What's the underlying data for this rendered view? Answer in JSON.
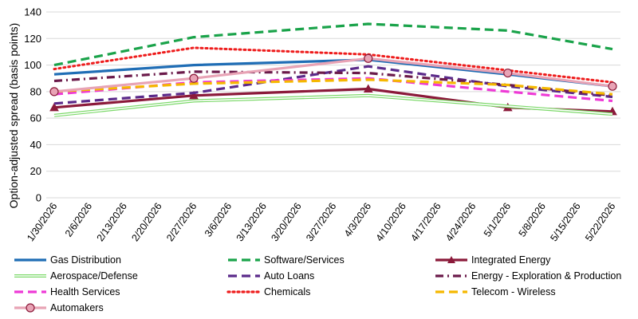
{
  "chart_data": {
    "type": "line",
    "title": "",
    "xlabel": "",
    "ylabel": "Option-adjusted spread (basis points)",
    "ylim": [
      0,
      140
    ],
    "yticks": [
      0,
      20,
      40,
      60,
      80,
      100,
      120,
      140
    ],
    "grid": true,
    "legend_position": "bottom",
    "x": [
      "1/30/2026",
      "2/6/2026",
      "2/13/2026",
      "2/20/2026",
      "2/27/2026",
      "3/6/2026",
      "3/13/2026",
      "3/20/2026",
      "3/27/2026",
      "4/3/2026",
      "4/10/2026",
      "4/17/2026",
      "4/24/2026",
      "5/1/2026",
      "5/8/2026",
      "5/15/2026",
      "5/22/2026"
    ],
    "series": [
      {
        "name": "Gas Distribution",
        "color": "#1f6db5",
        "dash": "solid",
        "marker": "none",
        "points": [
          [
            "1/30/2026",
            93
          ],
          [
            "2/27/2026",
            100
          ],
          [
            "4/3/2026",
            104
          ],
          [
            "5/1/2026",
            93
          ],
          [
            "5/22/2026",
            84
          ]
        ]
      },
      {
        "name": "Software/Services",
        "color": "#1aa34a",
        "dash": "longdash",
        "marker": "none",
        "points": [
          [
            "1/30/2026",
            100
          ],
          [
            "2/27/2026",
            121
          ],
          [
            "4/3/2026",
            131
          ],
          [
            "5/1/2026",
            126
          ],
          [
            "5/22/2026",
            112
          ]
        ]
      },
      {
        "name": "Integrated Energy",
        "color": "#8b1a3a",
        "dash": "solid",
        "marker": "triangle",
        "points": [
          [
            "1/30/2026",
            68
          ],
          [
            "2/27/2026",
            77
          ],
          [
            "4/3/2026",
            82
          ],
          [
            "5/1/2026",
            68
          ],
          [
            "5/22/2026",
            65
          ]
        ]
      },
      {
        "name": "Aerospace/Defense",
        "color": "#7dd96b",
        "dash": "double",
        "marker": "none",
        "points": [
          [
            "1/30/2026",
            62
          ],
          [
            "2/27/2026",
            73
          ],
          [
            "4/3/2026",
            77
          ],
          [
            "5/1/2026",
            69
          ],
          [
            "5/22/2026",
            63
          ]
        ]
      },
      {
        "name": "Auto Loans",
        "color": "#5b2a8a",
        "dash": "longdash",
        "marker": "none",
        "points": [
          [
            "1/30/2026",
            71
          ],
          [
            "2/27/2026",
            79
          ],
          [
            "4/3/2026",
            99
          ],
          [
            "5/1/2026",
            84
          ],
          [
            "5/22/2026",
            76
          ]
        ]
      },
      {
        "name": "Energy - Exploration & Production",
        "color": "#6b1a4a",
        "dash": "dashdot",
        "marker": "none",
        "points": [
          [
            "1/30/2026",
            88
          ],
          [
            "2/27/2026",
            95
          ],
          [
            "4/3/2026",
            94
          ],
          [
            "5/1/2026",
            85
          ],
          [
            "5/22/2026",
            77
          ]
        ]
      },
      {
        "name": "Health Services",
        "color": "#ee3ad6",
        "dash": "longdash",
        "marker": "none",
        "points": [
          [
            "1/30/2026",
            78
          ],
          [
            "2/27/2026",
            87
          ],
          [
            "4/3/2026",
            90
          ],
          [
            "5/1/2026",
            80
          ],
          [
            "5/22/2026",
            73
          ]
        ]
      },
      {
        "name": "Chemicals",
        "color": "#ee1c1c",
        "dash": "dotted",
        "marker": "none",
        "points": [
          [
            "1/30/2026",
            97
          ],
          [
            "2/27/2026",
            113
          ],
          [
            "4/3/2026",
            108
          ],
          [
            "5/1/2026",
            96
          ],
          [
            "5/22/2026",
            87
          ]
        ]
      },
      {
        "name": "Telecom - Wireless",
        "color": "#f5b800",
        "dash": "longdash",
        "marker": "none",
        "points": [
          [
            "1/30/2026",
            80
          ],
          [
            "2/27/2026",
            86
          ],
          [
            "4/3/2026",
            89
          ],
          [
            "5/1/2026",
            85
          ],
          [
            "5/22/2026",
            78
          ]
        ]
      },
      {
        "name": "Automakers",
        "color": "#e8a3b5",
        "dash": "solid",
        "marker": "circle",
        "points": [
          [
            "1/30/2026",
            80
          ],
          [
            "2/27/2026",
            90
          ],
          [
            "4/3/2026",
            105
          ],
          [
            "5/1/2026",
            94
          ],
          [
            "5/22/2026",
            84
          ]
        ]
      }
    ]
  }
}
